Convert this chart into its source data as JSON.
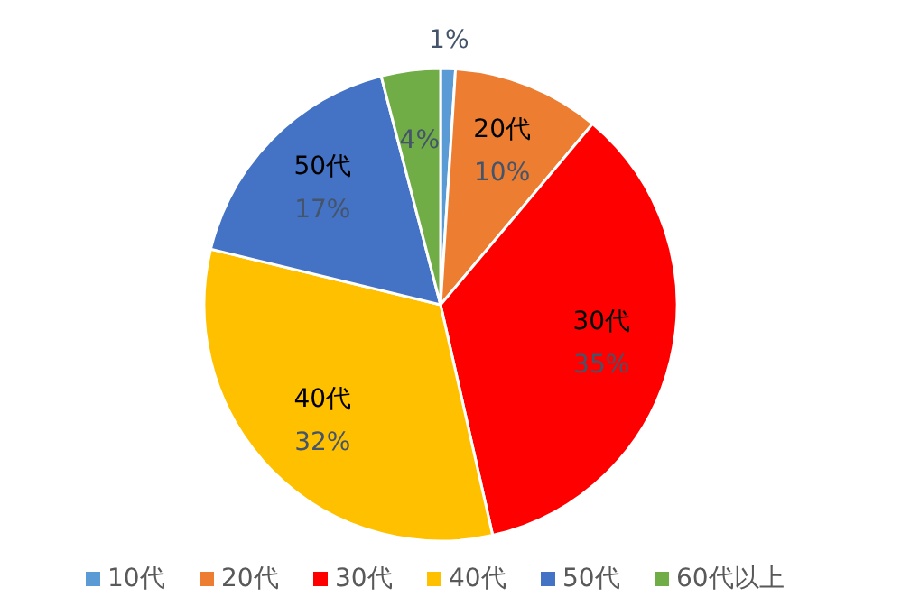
{
  "chart_data": {
    "type": "pie",
    "categories": [
      "10代",
      "20代",
      "30代",
      "40代",
      "50代",
      "60代以上"
    ],
    "values": [
      1,
      10,
      35,
      32,
      17,
      4
    ],
    "colors": [
      "#5b9bd5",
      "#ed7d31",
      "#ff0000",
      "#ffc000",
      "#4472c4",
      "#70ad47"
    ],
    "value_labels": [
      "1%",
      "20代\n10%",
      "30代\n35%",
      "40代\n32%",
      "50代\n17%",
      "4%"
    ],
    "legend": "bottom"
  }
}
